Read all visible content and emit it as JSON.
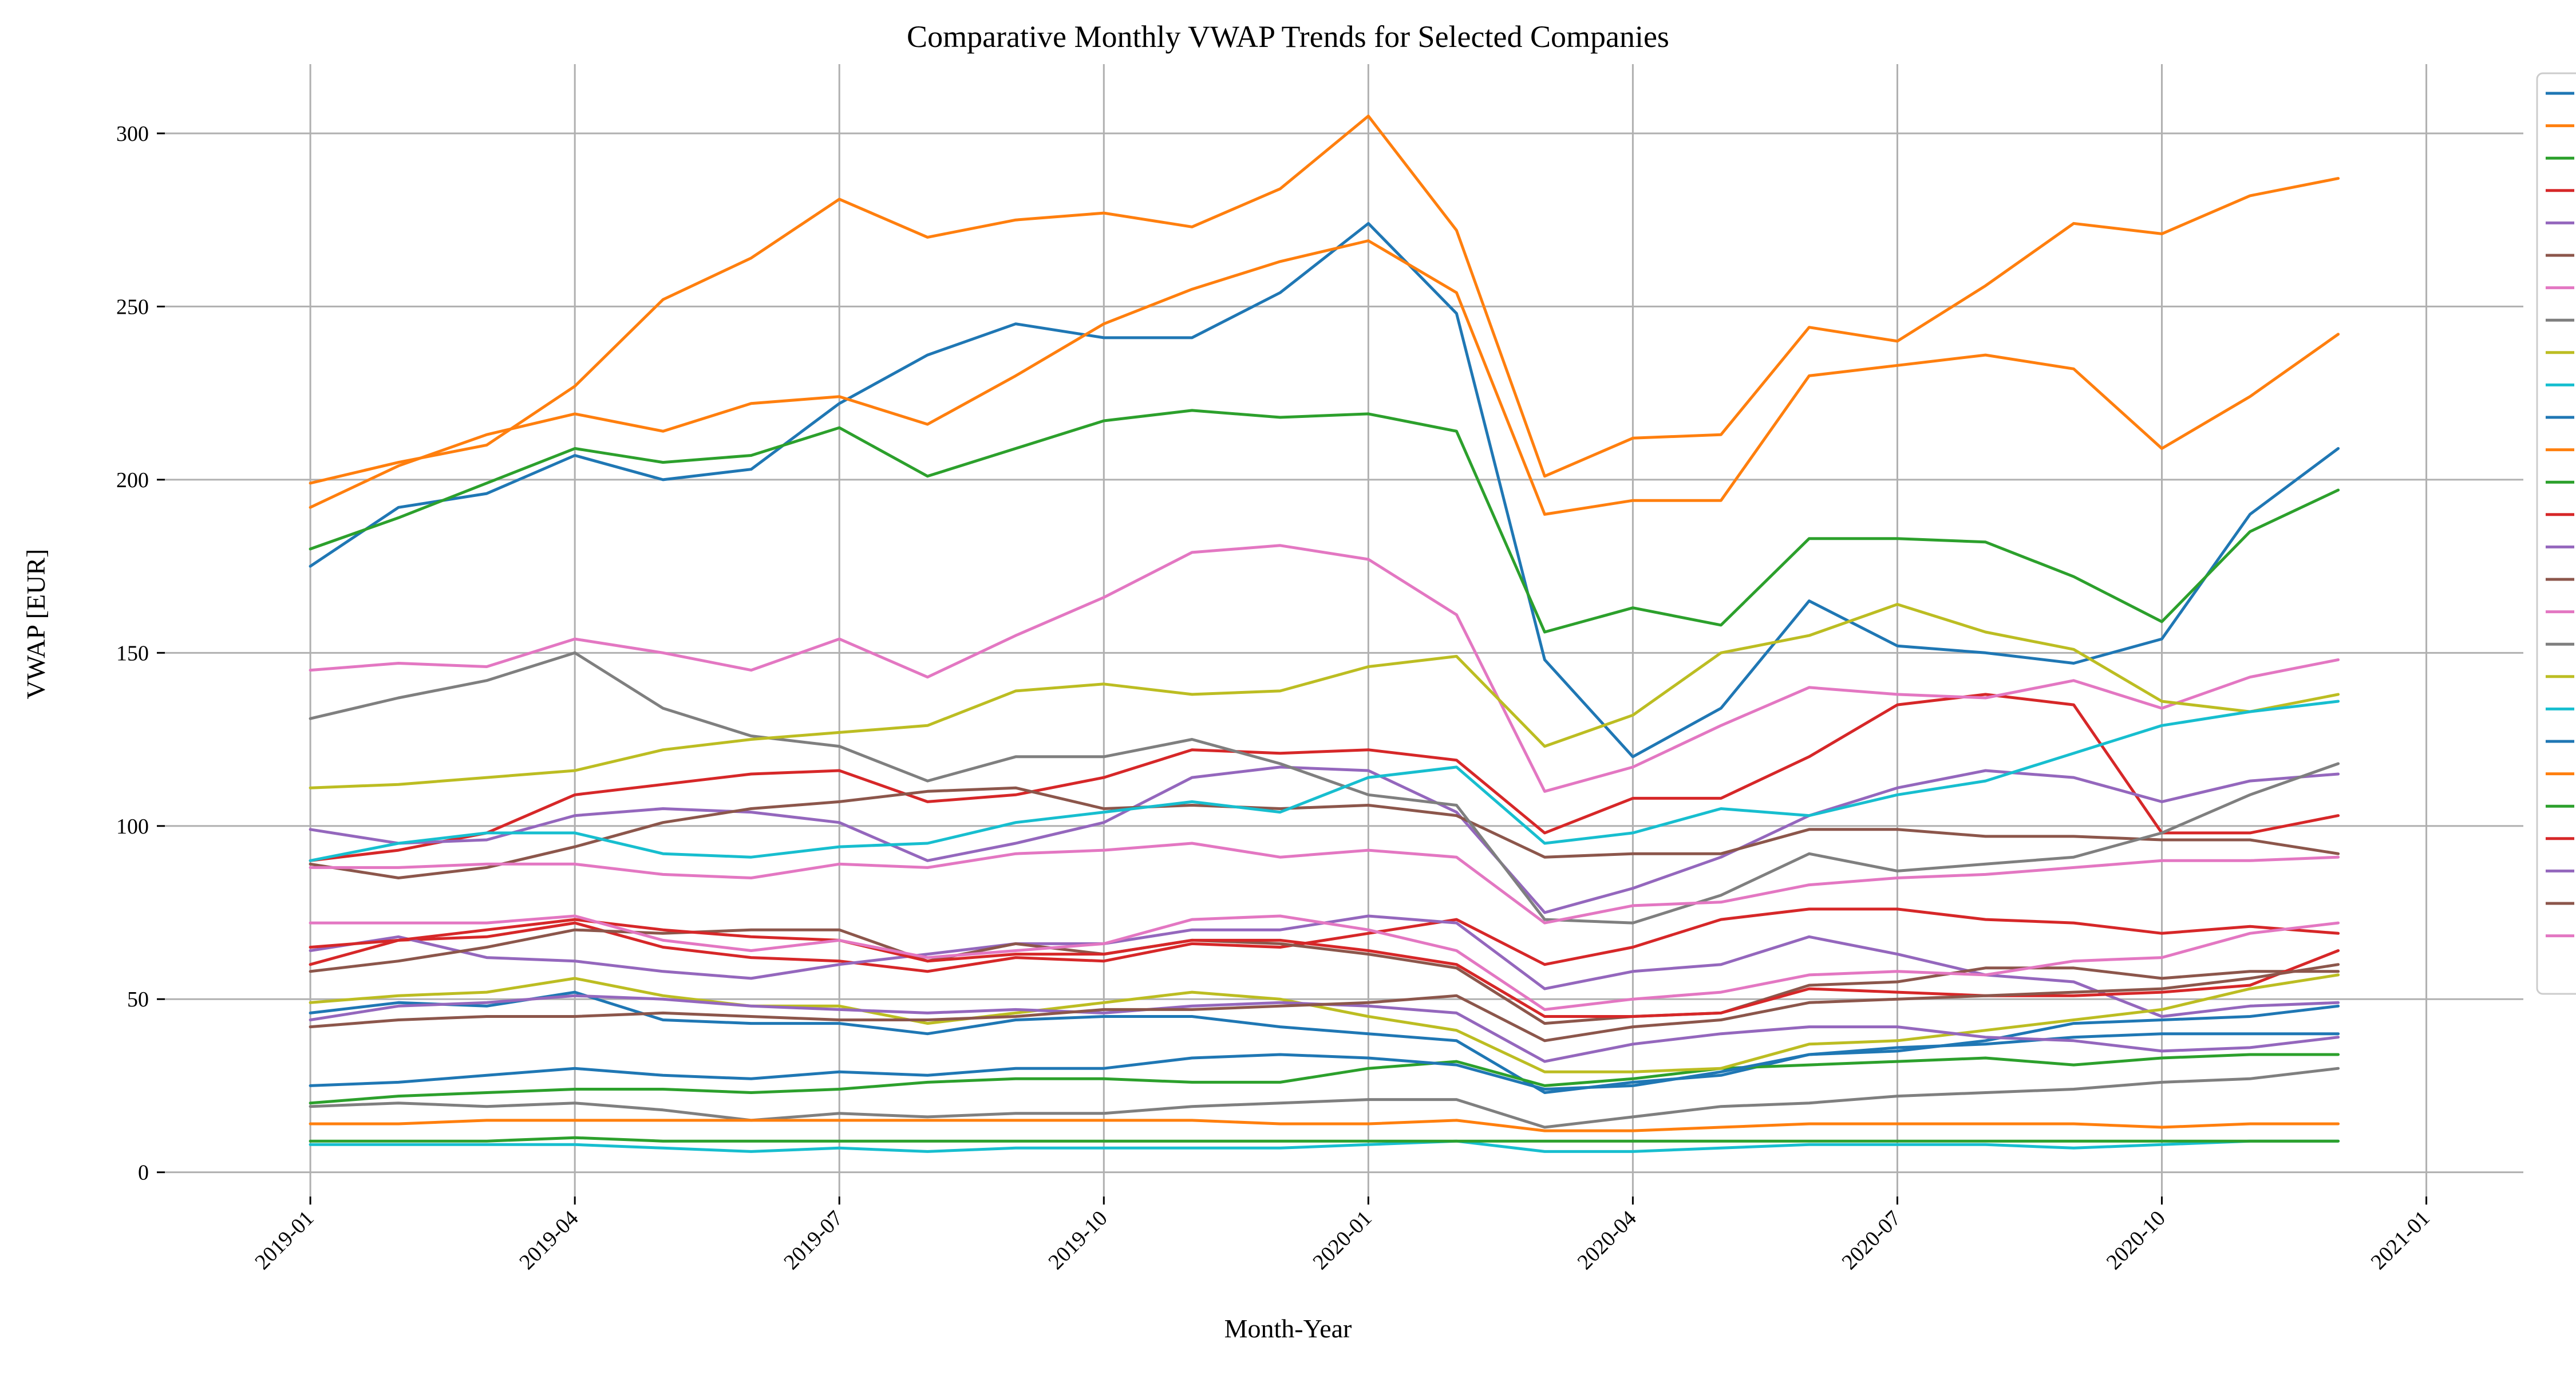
{
  "chart_data": {
    "type": "line",
    "title": "Comparative Monthly VWAP Trends for Selected Companies",
    "xlabel": "Month-Year",
    "ylabel": "VWAP [EUR]",
    "x": [
      "2019-01",
      "2019-02",
      "2019-03",
      "2019-04",
      "2019-05",
      "2019-06",
      "2019-07",
      "2019-08",
      "2019-09",
      "2019-10",
      "2019-11",
      "2019-12",
      "2020-01",
      "2020-02",
      "2020-03",
      "2020-04",
      "2020-05",
      "2020-06",
      "2020-07",
      "2020-08",
      "2020-09",
      "2020-10",
      "2020-11",
      "2020-12"
    ],
    "x_ticks": [
      "2019-01",
      "2019-04",
      "2019-07",
      "2019-10",
      "2020-01",
      "2020-04",
      "2020-07",
      "2020-10",
      "2021-01"
    ],
    "xlim": [
      "2019-01",
      "2021-01"
    ],
    "y_ticks": [
      0,
      50,
      100,
      150,
      200,
      250,
      300
    ],
    "ylim": [
      -7,
      320
    ],
    "grid": true,
    "legend_position": "right",
    "series": [
      {
        "color": "#1f77b4",
        "values": [
          175,
          192,
          196,
          207,
          200,
          203,
          222,
          236,
          245,
          241,
          241,
          254,
          274,
          248,
          148,
          120,
          134,
          165,
          152,
          150,
          147,
          154,
          190,
          209
        ]
      },
      {
        "color": "#ff7f0e",
        "values": [
          199,
          205,
          210,
          227,
          252,
          264,
          281,
          270,
          275,
          277,
          273,
          284,
          305,
          272,
          201,
          212,
          213,
          244,
          240,
          256,
          274,
          271,
          282,
          287
        ]
      },
      {
        "color": "#2ca02c",
        "values": [
          180,
          189,
          199,
          209,
          205,
          207,
          215,
          201,
          209,
          217,
          220,
          218,
          219,
          214,
          156,
          163,
          158,
          183,
          183,
          182,
          172,
          159,
          185,
          197
        ]
      },
      {
        "color": "#d62728",
        "values": [
          90,
          93,
          98,
          109,
          112,
          115,
          116,
          107,
          109,
          114,
          122,
          121,
          122,
          119,
          98,
          108,
          108,
          120,
          135,
          138,
          135,
          98,
          98,
          103
        ]
      },
      {
        "color": "#9467bd",
        "values": [
          99,
          95,
          96,
          103,
          105,
          104,
          101,
          90,
          95,
          101,
          114,
          117,
          116,
          104,
          75,
          82,
          91,
          103,
          111,
          116,
          114,
          107,
          113,
          115
        ]
      },
      {
        "color": "#8c564b",
        "values": [
          89,
          85,
          88,
          94,
          101,
          105,
          107,
          110,
          111,
          105,
          106,
          105,
          106,
          103,
          91,
          92,
          92,
          99,
          99,
          97,
          97,
          96,
          96,
          92
        ]
      },
      {
        "color": "#e377c2",
        "values": [
          145,
          147,
          146,
          154,
          150,
          145,
          154,
          143,
          155,
          166,
          179,
          181,
          177,
          161,
          110,
          117,
          129,
          140,
          138,
          137,
          142,
          134,
          143,
          148
        ]
      },
      {
        "color": "#7f7f7f",
        "values": [
          131,
          137,
          142,
          150,
          134,
          126,
          123,
          113,
          120,
          120,
          125,
          118,
          109,
          106,
          73,
          72,
          80,
          92,
          87,
          89,
          91,
          98,
          109,
          118
        ]
      },
      {
        "color": "#bcbd22",
        "values": [
          111,
          112,
          114,
          116,
          122,
          125,
          127,
          129,
          139,
          141,
          138,
          139,
          146,
          149,
          123,
          132,
          150,
          155,
          164,
          156,
          151,
          136,
          133,
          138
        ]
      },
      {
        "color": "#17becf",
        "values": [
          90,
          95,
          98,
          98,
          92,
          91,
          94,
          95,
          101,
          104,
          107,
          104,
          114,
          117,
          95,
          98,
          105,
          103,
          109,
          113,
          121,
          129,
          133,
          136
        ]
      },
      {
        "color": "#1f77b4",
        "values": [
          46,
          49,
          48,
          52,
          44,
          43,
          43,
          40,
          44,
          45,
          45,
          42,
          40,
          38,
          23,
          26,
          28,
          34,
          35,
          38,
          43,
          44,
          45,
          48
        ]
      },
      {
        "color": "#ff7f0e",
        "values": [
          192,
          204,
          213,
          219,
          214,
          222,
          224,
          216,
          230,
          245,
          255,
          263,
          269,
          254,
          190,
          194,
          194,
          230,
          233,
          236,
          232,
          209,
          224,
          242
        ]
      },
      {
        "color": "#2ca02c",
        "values": [
          20,
          22,
          23,
          24,
          24,
          23,
          24,
          26,
          27,
          27,
          26,
          26,
          30,
          32,
          25,
          27,
          30,
          31,
          32,
          33,
          31,
          33,
          34,
          34
        ]
      },
      {
        "color": "#d62728",
        "values": [
          60,
          67,
          68,
          72,
          65,
          62,
          61,
          58,
          62,
          61,
          66,
          65,
          69,
          73,
          60,
          65,
          73,
          76,
          76,
          73,
          72,
          69,
          71,
          69
        ]
      },
      {
        "color": "#9467bd",
        "values": [
          64,
          68,
          62,
          61,
          58,
          56,
          60,
          63,
          66,
          66,
          70,
          70,
          74,
          72,
          53,
          58,
          60,
          68,
          63,
          57,
          55,
          45,
          48,
          49
        ]
      },
      {
        "color": "#8c564b",
        "values": [
          58,
          61,
          65,
          70,
          69,
          70,
          70,
          61,
          66,
          63,
          67,
          66,
          63,
          59,
          43,
          45,
          46,
          54,
          55,
          59,
          59,
          56,
          58,
          58
        ]
      },
      {
        "color": "#e377c2",
        "values": [
          88,
          88,
          89,
          89,
          86,
          85,
          89,
          88,
          92,
          93,
          95,
          91,
          93,
          91,
          72,
          77,
          78,
          83,
          85,
          86,
          88,
          90,
          90,
          91
        ]
      },
      {
        "color": "#7f7f7f",
        "values": [
          19,
          20,
          19,
          20,
          18,
          15,
          17,
          16,
          17,
          17,
          19,
          20,
          21,
          21,
          13,
          16,
          19,
          20,
          22,
          23,
          24,
          26,
          27,
          30
        ]
      },
      {
        "color": "#bcbd22",
        "values": [
          49,
          51,
          52,
          56,
          51,
          48,
          48,
          43,
          46,
          49,
          52,
          50,
          45,
          41,
          29,
          29,
          30,
          37,
          38,
          41,
          44,
          47,
          53,
          57
        ]
      },
      {
        "color": "#17becf",
        "values": [
          8,
          8,
          8,
          8,
          7,
          6,
          7,
          6,
          7,
          7,
          7,
          7,
          8,
          9,
          6,
          6,
          7,
          8,
          8,
          8,
          7,
          8,
          9,
          9
        ]
      },
      {
        "color": "#1f77b4",
        "values": [
          25,
          26,
          28,
          30,
          28,
          27,
          29,
          28,
          30,
          30,
          33,
          34,
          33,
          31,
          24,
          25,
          29,
          34,
          36,
          37,
          39,
          40,
          40,
          40
        ]
      },
      {
        "color": "#ff7f0e",
        "values": [
          14,
          14,
          15,
          15,
          15,
          15,
          15,
          15,
          15,
          15,
          15,
          14,
          14,
          15,
          12,
          12,
          13,
          14,
          14,
          14,
          14,
          13,
          14,
          14
        ]
      },
      {
        "color": "#2ca02c",
        "values": [
          9,
          9,
          9,
          10,
          9,
          9,
          9,
          9,
          9,
          9,
          9,
          9,
          9,
          9,
          9,
          9,
          9,
          9,
          9,
          9,
          9,
          9,
          9,
          9
        ]
      },
      {
        "color": "#d62728",
        "values": [
          65,
          67,
          70,
          73,
          70,
          68,
          67,
          61,
          63,
          63,
          67,
          67,
          64,
          60,
          45,
          45,
          46,
          53,
          52,
          51,
          51,
          52,
          54,
          64
        ]
      },
      {
        "color": "#9467bd",
        "values": [
          44,
          48,
          49,
          51,
          50,
          48,
          47,
          46,
          47,
          46,
          48,
          49,
          48,
          46,
          32,
          37,
          40,
          42,
          42,
          39,
          38,
          35,
          36,
          39
        ]
      },
      {
        "color": "#8c564b",
        "values": [
          42,
          44,
          45,
          45,
          46,
          45,
          44,
          44,
          45,
          47,
          47,
          48,
          49,
          51,
          38,
          42,
          44,
          49,
          50,
          51,
          52,
          53,
          56,
          60
        ]
      },
      {
        "color": "#e377c2",
        "values": [
          72,
          72,
          72,
          74,
          67,
          64,
          67,
          62,
          64,
          66,
          73,
          74,
          70,
          64,
          47,
          50,
          52,
          57,
          58,
          57,
          61,
          62,
          69,
          72
        ]
      }
    ]
  }
}
